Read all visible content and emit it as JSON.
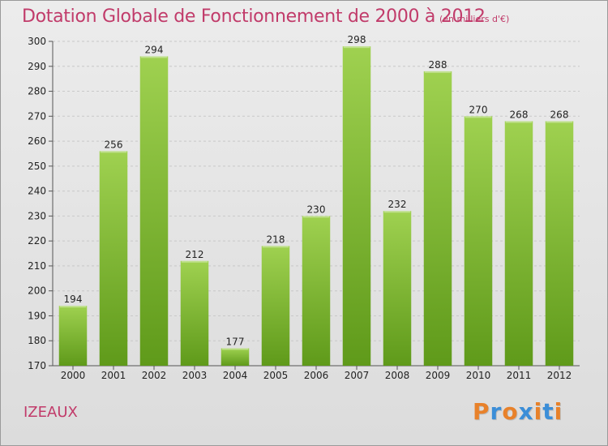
{
  "title": "Dotation Globale de Fonctionnement de 2000 à 2012",
  "unit_note": "(en milliers d'€)",
  "commune": "IZEAUX",
  "logo": {
    "letters": [
      "P",
      "r",
      "o",
      "x",
      "i",
      "t",
      "i"
    ],
    "colors": [
      "#e8812a",
      "#3b8ed8",
      "#e8812a",
      "#3b8ed8",
      "#e8812a",
      "#3b8ed8",
      "#e8812a"
    ]
  },
  "colors": {
    "title": "#c13b6a",
    "bar_top": "#9fd150",
    "bar_bottom": "#5f9a1a",
    "grid": "#c8c8c8"
  },
  "chart_data": {
    "type": "bar",
    "title": "Dotation Globale de Fonctionnement de 2000 à 2012",
    "ylabel": "(en milliers d'€)",
    "xlabel": "",
    "categories": [
      "2000",
      "2001",
      "2002",
      "2003",
      "2004",
      "2005",
      "2006",
      "2007",
      "2008",
      "2009",
      "2010",
      "2011",
      "2012"
    ],
    "values": [
      194,
      256,
      294,
      212,
      177,
      218,
      230,
      298,
      232,
      288,
      270,
      268,
      268
    ],
    "value_labels": [
      "194",
      "256",
      "294",
      "212",
      "177",
      "218",
      "230",
      "298",
      "232",
      "288",
      "270",
      "268",
      "268"
    ],
    "ylim": [
      170,
      300
    ],
    "yticks": [
      170,
      180,
      190,
      200,
      210,
      220,
      230,
      240,
      250,
      260,
      270,
      280,
      290,
      300
    ],
    "grid": true
  }
}
